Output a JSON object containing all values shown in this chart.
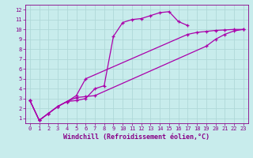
{
  "xlabel": "Windchill (Refroidissement éolien,°C)",
  "bg_color": "#c8ecec",
  "grid_color": "#b0d8d8",
  "line_color": "#aa00aa",
  "xlim": [
    -0.5,
    23.5
  ],
  "ylim": [
    0.5,
    12.5
  ],
  "xticks": [
    0,
    1,
    2,
    3,
    4,
    5,
    6,
    7,
    8,
    9,
    10,
    11,
    12,
    13,
    14,
    15,
    16,
    17,
    18,
    19,
    20,
    21,
    22,
    23
  ],
  "yticks": [
    1,
    2,
    3,
    4,
    5,
    6,
    7,
    8,
    9,
    10,
    11,
    12
  ],
  "line1_x": [
    0,
    1,
    2,
    3,
    4,
    5,
    6,
    7,
    8,
    9,
    10,
    11,
    12,
    13,
    14,
    15,
    16,
    17
  ],
  "line1_y": [
    2.8,
    0.8,
    1.5,
    2.2,
    2.7,
    2.8,
    3.0,
    4.0,
    4.3,
    9.3,
    10.7,
    11.0,
    11.1,
    11.4,
    11.7,
    11.8,
    10.8,
    10.4
  ],
  "line2_x": [
    0,
    1,
    2,
    3,
    4,
    5,
    6,
    17,
    18,
    19,
    20,
    21,
    22,
    23
  ],
  "line2_y": [
    2.8,
    0.8,
    1.5,
    2.2,
    2.7,
    3.3,
    5.0,
    9.5,
    9.7,
    9.8,
    9.9,
    9.95,
    10.0,
    10.0
  ],
  "line3_x": [
    0,
    1,
    2,
    3,
    4,
    5,
    6,
    7,
    19,
    20,
    21,
    22,
    23
  ],
  "line3_y": [
    2.8,
    0.8,
    1.5,
    2.2,
    2.7,
    3.1,
    3.2,
    3.3,
    8.3,
    9.0,
    9.5,
    9.85,
    10.0
  ],
  "font_color": "#880088",
  "tick_fontsize": 5.0,
  "label_fontsize": 6.0
}
